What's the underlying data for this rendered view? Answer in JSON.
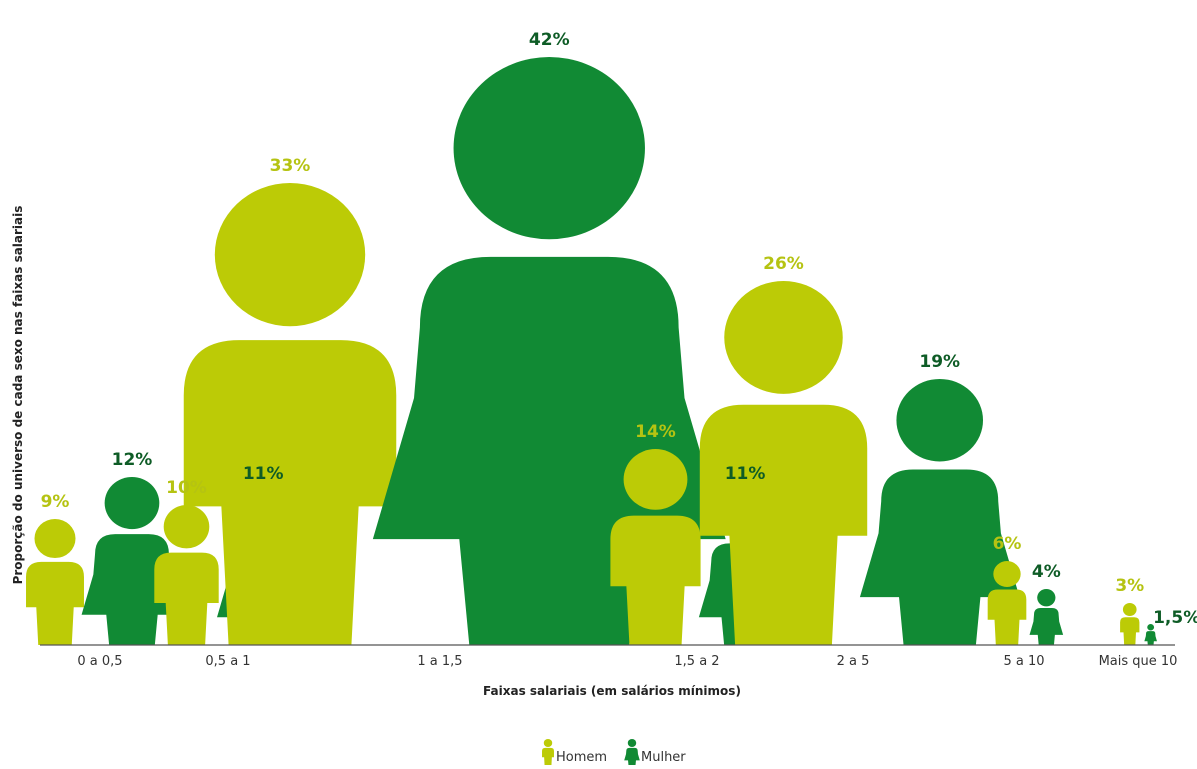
{
  "chart_data": {
    "type": "bar",
    "categories": [
      "0 a 0,5",
      "0,5 a 1",
      "1 a 1,5",
      "1,5 a 2",
      "2 a 5",
      "5 a 10",
      "Mais que 10"
    ],
    "series": [
      {
        "name": "Homem",
        "values": [
          9,
          10,
          33,
          14,
          26,
          6,
          3
        ],
        "labels": [
          "9%",
          "10%",
          "33%",
          "14%",
          "26%",
          "6%",
          "3%"
        ],
        "color": "#bccb06"
      },
      {
        "name": "Mulher",
        "values": [
          12,
          11,
          42,
          11,
          19,
          4,
          1.5
        ],
        "labels": [
          "12%",
          "11%",
          "42%",
          "11%",
          "19%",
          "4%",
          "1,5%"
        ],
        "color": "#118a34"
      }
    ],
    "xlabel": "Faixas salariais (em salários mínimos)",
    "ylabel": "Proporção do universo de cada sexo nas faixas salariais",
    "ylim": [
      0,
      42
    ],
    "legend_position": "bottom-center",
    "grid": false
  },
  "colors": {
    "homem": "#bccb06",
    "mulher": "#118a34",
    "homem_label": "#b5c312",
    "mulher_label": "#0e5c26",
    "axis": "#555555"
  }
}
